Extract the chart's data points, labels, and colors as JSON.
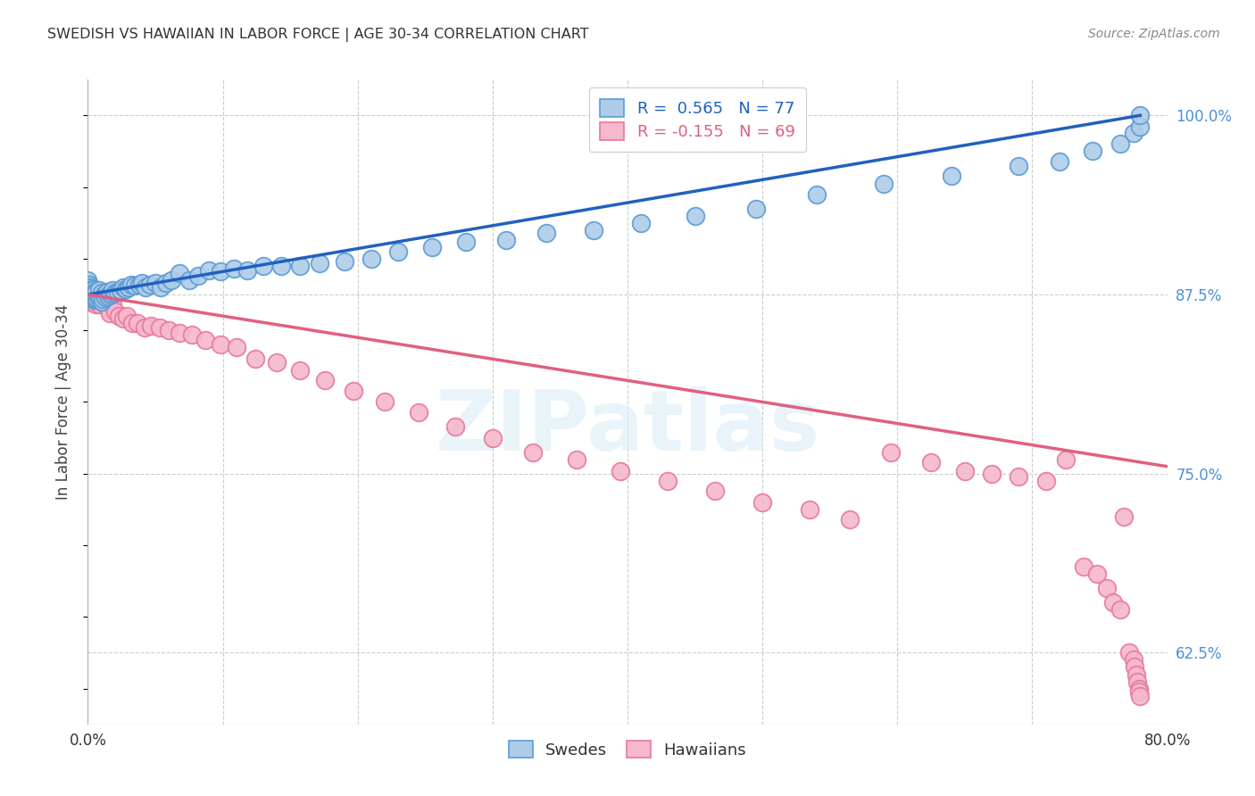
{
  "title": "SWEDISH VS HAWAIIAN IN LABOR FORCE | AGE 30-34 CORRELATION CHART",
  "source": "Source: ZipAtlas.com",
  "ylabel": "In Labor Force | Age 30-34",
  "ytick_labels": [
    "62.5%",
    "75.0%",
    "87.5%",
    "100.0%"
  ],
  "ytick_values": [
    0.625,
    0.75,
    0.875,
    1.0
  ],
  "watermark": "ZIPatlas",
  "swedish_color": "#aecce8",
  "hawaiian_color": "#f5b8cc",
  "swedish_edge": "#5b9bd5",
  "hawaiian_edge": "#e8789a",
  "trend_blue": "#2060c0",
  "trend_pink": "#e06080",
  "background": "#ffffff",
  "grid_color": "#cccccc",
  "title_color": "#333333",
  "source_color": "#888888",
  "right_tick_color": "#4a90d9",
  "x_min": 0.0,
  "x_max": 0.8,
  "y_min": 0.575,
  "y_max": 1.025,
  "legend_r_blue": "R =  0.565",
  "legend_n_blue": "N = 77",
  "legend_r_pink": "R = -0.155",
  "legend_n_pink": "N = 69",
  "legend_blue_color": "#2060c0",
  "legend_pink_color": "#e06080",
  "sw_x": [
    0.0,
    0.0,
    0.0,
    0.001,
    0.001,
    0.002,
    0.002,
    0.003,
    0.003,
    0.004,
    0.004,
    0.005,
    0.005,
    0.006,
    0.006,
    0.007,
    0.008,
    0.008,
    0.009,
    0.01,
    0.01,
    0.011,
    0.012,
    0.013,
    0.014,
    0.015,
    0.016,
    0.017,
    0.018,
    0.02,
    0.022,
    0.024,
    0.026,
    0.028,
    0.03,
    0.032,
    0.035,
    0.038,
    0.04,
    0.043,
    0.046,
    0.05,
    0.054,
    0.058,
    0.062,
    0.068,
    0.075,
    0.082,
    0.09,
    0.098,
    0.108,
    0.118,
    0.13,
    0.143,
    0.157,
    0.172,
    0.19,
    0.21,
    0.23,
    0.255,
    0.28,
    0.31,
    0.34,
    0.375,
    0.41,
    0.45,
    0.495,
    0.54,
    0.59,
    0.64,
    0.69,
    0.72,
    0.745,
    0.765,
    0.775,
    0.78,
    0.78
  ],
  "sw_y": [
    0.875,
    0.88,
    0.885,
    0.876,
    0.882,
    0.874,
    0.88,
    0.873,
    0.879,
    0.872,
    0.878,
    0.871,
    0.877,
    0.872,
    0.876,
    0.872,
    0.873,
    0.878,
    0.872,
    0.87,
    0.876,
    0.872,
    0.875,
    0.873,
    0.877,
    0.874,
    0.875,
    0.876,
    0.878,
    0.876,
    0.877,
    0.878,
    0.88,
    0.879,
    0.88,
    0.882,
    0.881,
    0.882,
    0.883,
    0.88,
    0.882,
    0.883,
    0.88,
    0.883,
    0.885,
    0.89,
    0.885,
    0.888,
    0.892,
    0.891,
    0.893,
    0.892,
    0.895,
    0.895,
    0.895,
    0.897,
    0.898,
    0.9,
    0.905,
    0.908,
    0.912,
    0.913,
    0.918,
    0.92,
    0.925,
    0.93,
    0.935,
    0.945,
    0.952,
    0.958,
    0.965,
    0.968,
    0.975,
    0.98,
    0.988,
    0.992,
    1.0
  ],
  "hw_x": [
    0.0,
    0.0,
    0.001,
    0.001,
    0.002,
    0.003,
    0.004,
    0.005,
    0.006,
    0.007,
    0.008,
    0.01,
    0.012,
    0.014,
    0.016,
    0.018,
    0.02,
    0.023,
    0.026,
    0.029,
    0.033,
    0.037,
    0.042,
    0.047,
    0.053,
    0.06,
    0.068,
    0.077,
    0.087,
    0.098,
    0.11,
    0.124,
    0.14,
    0.157,
    0.176,
    0.197,
    0.22,
    0.245,
    0.272,
    0.3,
    0.33,
    0.362,
    0.395,
    0.43,
    0.465,
    0.5,
    0.535,
    0.565,
    0.595,
    0.625,
    0.65,
    0.67,
    0.69,
    0.71,
    0.725,
    0.738,
    0.748,
    0.755,
    0.76,
    0.765,
    0.768,
    0.772,
    0.775,
    0.776,
    0.777,
    0.778,
    0.779,
    0.779,
    0.78
  ],
  "hw_y": [
    0.875,
    0.872,
    0.874,
    0.87,
    0.872,
    0.875,
    0.873,
    0.87,
    0.868,
    0.873,
    0.868,
    0.871,
    0.869,
    0.866,
    0.862,
    0.868,
    0.863,
    0.86,
    0.858,
    0.86,
    0.855,
    0.855,
    0.852,
    0.853,
    0.852,
    0.85,
    0.848,
    0.847,
    0.843,
    0.84,
    0.838,
    0.83,
    0.828,
    0.822,
    0.815,
    0.808,
    0.8,
    0.793,
    0.783,
    0.775,
    0.765,
    0.76,
    0.752,
    0.745,
    0.738,
    0.73,
    0.725,
    0.718,
    0.765,
    0.758,
    0.752,
    0.75,
    0.748,
    0.745,
    0.76,
    0.685,
    0.68,
    0.67,
    0.66,
    0.655,
    0.72,
    0.625,
    0.62,
    0.615,
    0.61,
    0.605,
    0.6,
    0.598,
    0.595
  ]
}
